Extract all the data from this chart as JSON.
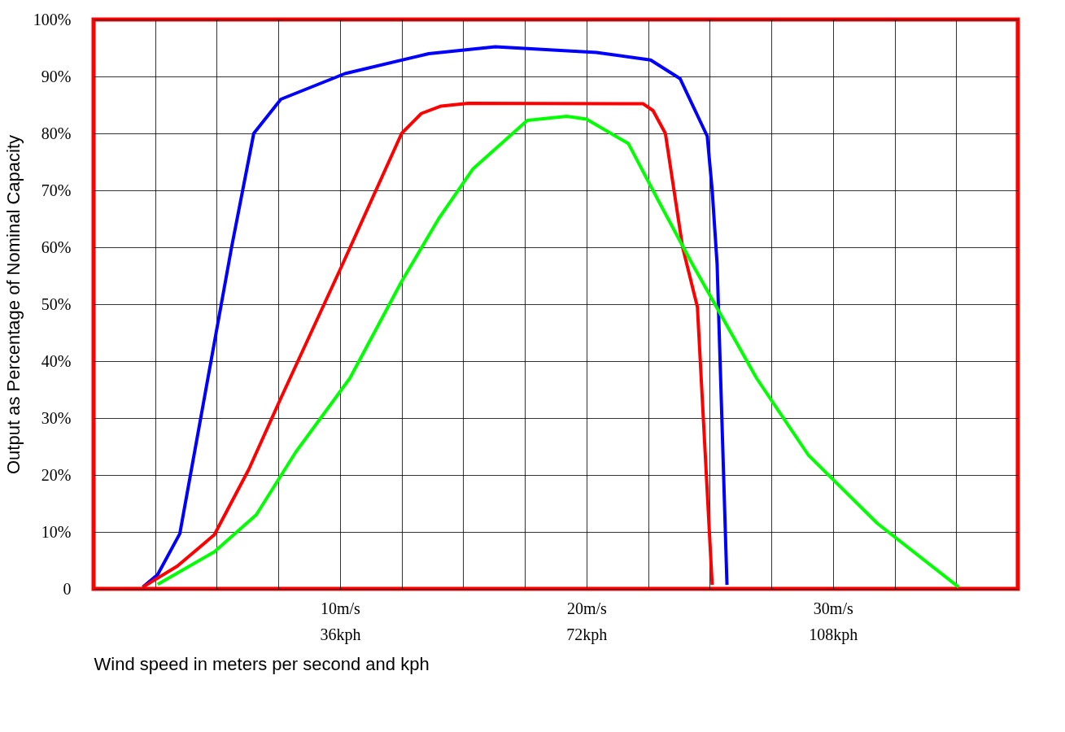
{
  "chart_data": {
    "type": "line",
    "xlabel": "Wind speed in meters per second and kph",
    "ylabel": "Output as Percentage of Nominal Capacity",
    "xlim": [
      0,
      37.5
    ],
    "xticks": [
      {
        "value": 2.5,
        "label": null
      },
      {
        "value": 5,
        "label": null
      },
      {
        "value": 7.5,
        "label": null
      },
      {
        "value": 10,
        "label": "10m/s"
      },
      {
        "value": 12.5,
        "label": null
      },
      {
        "value": 15,
        "label": null
      },
      {
        "value": 17.5,
        "label": null
      },
      {
        "value": 20,
        "label": "20m/s"
      },
      {
        "value": 22.5,
        "label": null
      },
      {
        "value": 25,
        "label": null
      },
      {
        "value": 27.5,
        "label": null
      },
      {
        "value": 30,
        "label": "30m/s"
      },
      {
        "value": 32.5,
        "label": null
      },
      {
        "value": 35,
        "label": null
      }
    ],
    "ylim": [
      0,
      100
    ],
    "yticks": [
      0,
      {
        "value": 10,
        "label": "10%"
      },
      {
        "value": 20,
        "label": "20%"
      },
      {
        "value": 30,
        "label": "30%"
      },
      {
        "value": 40,
        "label": "40%"
      },
      {
        "value": 50,
        "label": "50%"
      },
      {
        "value": 60,
        "label": "60%"
      },
      {
        "value": 70,
        "label": "70%"
      },
      {
        "value": 80,
        "label": "80%"
      },
      {
        "value": 90,
        "label": "90%"
      },
      {
        "value": 100,
        "label": "100%"
      }
    ],
    "x2lim": [
      0,
      135
    ],
    "x2ticks": [
      {
        "value": 36,
        "label": "36kph"
      },
      {
        "value": 72,
        "label": "72kph"
      },
      {
        "value": 108,
        "label": "108kph"
      }
    ],
    "grid": true,
    "marker": "none",
    "line_style": "solid",
    "series": [
      {
        "color": "#0000ff",
        "x": [
          2.0,
          2.6,
          3.5,
          5.6,
          6.5,
          7.6,
          10.2,
          13.6,
          16.3,
          20.4,
          22.6,
          23.8,
          24.9,
          25.1,
          25.3,
          25.7
        ],
        "values": [
          0.3,
          2.5,
          9.7,
          60,
          80,
          86,
          90.5,
          94,
          95.2,
          94.2,
          92.9,
          89.6,
          79.5,
          70,
          57,
          0.7
        ]
      },
      {
        "color": "#ff0000",
        "x": [
          2.0,
          3.4,
          4.9,
          6.3,
          7.6,
          10.1,
          12.5,
          13.3,
          14.1,
          15.2,
          22.3,
          22.7,
          23.2,
          23.9,
          24.5,
          25.1
        ],
        "values": [
          0.3,
          4,
          9.5,
          21,
          33.5,
          57,
          80,
          83.5,
          84.8,
          85.3,
          85.2,
          84,
          80,
          60,
          49.5,
          0.7
        ]
      },
      {
        "color": "#00ff00",
        "x": [
          2.6,
          4.9,
          6.6,
          8.2,
          10.4,
          12.5,
          14.0,
          15.4,
          17.6,
          19.2,
          20.0,
          21.7,
          23.0,
          24.3,
          26.9,
          29.0,
          31.8,
          35.1
        ],
        "values": [
          0.8,
          6.5,
          13,
          24,
          37,
          54,
          65,
          73.8,
          82.3,
          83,
          82.5,
          78.2,
          67.5,
          57,
          37,
          23.5,
          11.5,
          0.3
        ]
      }
    ]
  }
}
